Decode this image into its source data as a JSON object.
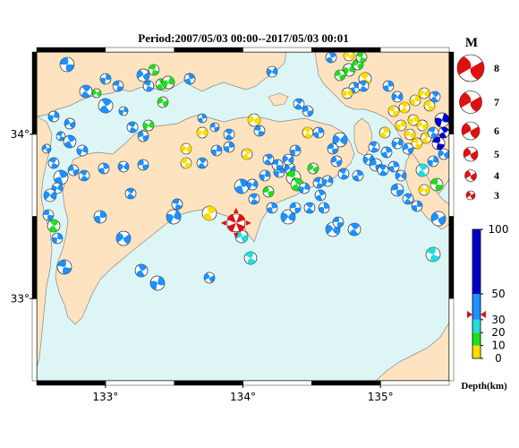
{
  "title": "Period:2007/05/03 00:00--2017/05/03 00:01",
  "axes": {
    "x_ticks": [
      {
        "value": 133,
        "label": "133°"
      },
      {
        "value": 134,
        "label": "134°"
      },
      {
        "value": 135,
        "label": "135°"
      }
    ],
    "y_ticks": [
      {
        "value": 34,
        "label": "34°"
      },
      {
        "value": 33,
        "label": "33°"
      }
    ],
    "lon_range": [
      132.5,
      135.5
    ],
    "lat_range": [
      32.5,
      34.5
    ]
  },
  "colors": {
    "sea": "#ddf5f5",
    "land": "#fde3c0",
    "coast": "#888888",
    "mech_0_10": "#ffdd00",
    "mech_10_20": "#22dd22",
    "mech_20_30": "#22dddd",
    "mech_30_50": "#1e90ff",
    "mech_50_100": "#0000cc",
    "latest": "#dd1111"
  },
  "magnitude_legend": {
    "heading": "M",
    "entries": [
      "8",
      "7",
      "6",
      "5",
      "4",
      "3"
    ]
  },
  "depth_legend": {
    "unit": "Depth(km)",
    "ticks": [
      "100",
      "50",
      "30",
      "20",
      "10",
      "0"
    ],
    "marker_depth": 34
  },
  "latest_event": {
    "lon": 133.95,
    "lat": 33.46,
    "size": 16
  }
}
